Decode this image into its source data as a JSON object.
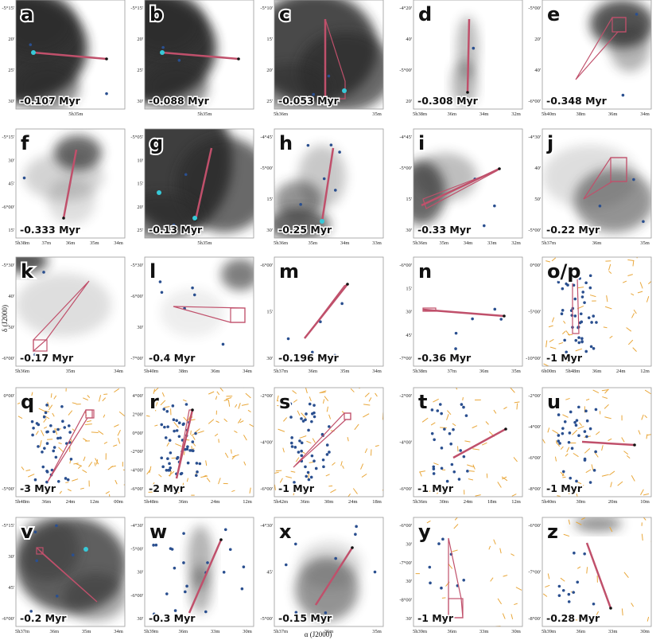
{
  "axes": {
    "x_label": "α (J2000)",
    "y_label": "δ (J2000)"
  },
  "colors": {
    "track": "#c0506b",
    "star": "#2a4f8f",
    "cyan": "#37c9d8",
    "vector": "#e9a73a",
    "cloud": "#2a2a2a"
  },
  "panels": [
    {
      "id": "a",
      "label": "a",
      "age": "-0.107 Myr",
      "yticks": [
        "-5°15'",
        "20'",
        "25'",
        "30'"
      ],
      "xticks": [
        "5h35m"
      ]
    },
    {
      "id": "b",
      "label": "b",
      "age": "-0.088 Myr",
      "yticks": [
        "-5°15'",
        "20'",
        "25'",
        "30'"
      ],
      "xticks": [
        "5h35m"
      ]
    },
    {
      "id": "c",
      "label": "c",
      "age": "-0.053 Myr",
      "yticks": [
        "-5°10'",
        "15'",
        "20'",
        "25'"
      ],
      "xticks": [
        "5h36m",
        "35m"
      ]
    },
    {
      "id": "d",
      "label": "d",
      "age": "-0.308 Myr",
      "yticks": [
        "-4°20'",
        "40'",
        "-5°00'",
        "20'"
      ],
      "xticks": [
        "5h38m",
        "36m",
        "34m",
        "32m"
      ]
    },
    {
      "id": "e",
      "label": "e",
      "age": "-0.348 Myr",
      "yticks": [
        "-5°00'",
        "20'",
        "40'",
        "-6°00'"
      ],
      "xticks": [
        "5h40m",
        "38m",
        "36m",
        "34m"
      ]
    },
    {
      "id": "f",
      "label": "f",
      "age": "-0.333 Myr",
      "yticks": [
        "-5°15'",
        "30'",
        "45'",
        "-6°00'",
        "15'"
      ],
      "xticks": [
        "5h38m",
        "37m",
        "36m",
        "35m",
        "34m"
      ]
    },
    {
      "id": "g",
      "label": "g",
      "age": "-0.13 Myr",
      "yticks": [
        "-5°05'",
        "10'",
        "15'",
        "20'",
        "25'"
      ],
      "xticks": [
        "5h35m"
      ]
    },
    {
      "id": "h",
      "label": "h",
      "age": "-0.25 Myr",
      "yticks": [
        "-4°45'",
        "-5°00'",
        "15'",
        "30'"
      ],
      "xticks": [
        "5h36m",
        "35m",
        "34m",
        "33m"
      ]
    },
    {
      "id": "i",
      "label": "i",
      "age": "-0.33 Myr",
      "yticks": [
        "-4°45'",
        "-5°00'",
        "15'",
        "30'"
      ],
      "xticks": [
        "5h36m",
        "35m",
        "34m",
        "33m",
        "32m"
      ]
    },
    {
      "id": "j",
      "label": "j",
      "age": "-0.22 Myr",
      "yticks": [
        "-4°30'",
        "40'",
        "50'",
        "-5°00'"
      ],
      "xticks": [
        "5h37m",
        "36m",
        "35m"
      ]
    },
    {
      "id": "k",
      "label": "k",
      "age": "-0.17 Myr",
      "yticks": [
        "-5°30'",
        "40'",
        "50'",
        "-6°00'"
      ],
      "xticks": [
        "5h36m",
        "35m",
        "34m"
      ]
    },
    {
      "id": "l",
      "label": "l",
      "age": "-0.4 Myr",
      "yticks": [
        "-5°30'",
        "-6°00'",
        "30'",
        "-7°00'"
      ],
      "xticks": [
        "5h40m",
        "38m",
        "36m",
        "34m"
      ]
    },
    {
      "id": "m",
      "label": "m",
      "age": "-0.196 Myr",
      "yticks": [
        "-6°00'",
        "15'",
        "30'"
      ],
      "xticks": [
        "5h37m",
        "36m",
        "35m",
        "34m"
      ]
    },
    {
      "id": "n",
      "label": "n",
      "age": "-0.36 Myr",
      "yticks": [
        "-6°00'",
        "15'",
        "30'",
        "45'",
        "-7°00'"
      ],
      "xticks": [
        "5h38m",
        "37m",
        "36m",
        "35m"
      ]
    },
    {
      "id": "op",
      "label": "o/p",
      "age": "-1 Myr",
      "yticks": [
        "0°00'",
        "-5°00'",
        "-10°00'"
      ],
      "xticks": [
        "6h00m",
        "5h48m",
        "36m",
        "24m",
        "12m"
      ]
    },
    {
      "id": "q",
      "label": "q",
      "age": "-3 Myr",
      "yticks": [
        "0°00'",
        "-5°00'"
      ],
      "xticks": [
        "5h48m",
        "36m",
        "24m",
        "12m",
        "00m"
      ]
    },
    {
      "id": "r",
      "label": "r",
      "age": "-2 Myr",
      "yticks": [
        "4°00'",
        "2°00'",
        "0°00'",
        "-2°00'",
        "-4°00'",
        "-6°00'"
      ],
      "xticks": [
        "5h48m",
        "36m",
        "24m",
        "12m"
      ]
    },
    {
      "id": "s",
      "label": "s",
      "age": "-1 Myr",
      "yticks": [
        "-2°00'",
        "-4°00'",
        "-6°00'"
      ],
      "xticks": [
        "5h42m",
        "36m",
        "30m",
        "24m",
        "18m"
      ]
    },
    {
      "id": "t",
      "label": "t",
      "age": "-1 Myr",
      "yticks": [
        "-2°00'",
        "-4°00'",
        "-6°00'"
      ],
      "xticks": [
        "5h36m",
        "30m",
        "24m",
        "18m",
        "12m"
      ]
    },
    {
      "id": "u",
      "label": "u",
      "age": "-1 Myr",
      "yticks": [
        "-2°00'",
        "-4°00'",
        "-6°00'",
        "-8°00'"
      ],
      "xticks": [
        "5h40m",
        "30m",
        "20m",
        "10m"
      ]
    },
    {
      "id": "v",
      "label": "v",
      "age": "-0.2 Myr",
      "yticks": [
        "-5°15'",
        "30'",
        "45'",
        "-6°00'"
      ],
      "xticks": [
        "5h37m",
        "36m",
        "35m",
        "34m"
      ]
    },
    {
      "id": "w",
      "label": "w",
      "age": "-0.3 Myr",
      "yticks": [
        "-4°30'",
        "-5°00'",
        "30'",
        "-6°00'",
        "30'"
      ],
      "xticks": [
        "5h39m",
        "36m",
        "33m",
        "30m"
      ]
    },
    {
      "id": "x",
      "label": "x",
      "age": "-0.15 Myr",
      "yticks": [
        "-4°30'",
        "45'",
        "-5°00'"
      ],
      "xticks": [
        "5h37m",
        "36m",
        "35m"
      ]
    },
    {
      "id": "y",
      "label": "y",
      "age": "-1 Myr",
      "yticks": [
        "-6°00'",
        "30'",
        "-7°00'",
        "30'",
        "-8°00'",
        "30'"
      ],
      "xticks": [
        "5h39m",
        "36m",
        "33m",
        "30m"
      ]
    },
    {
      "id": "z",
      "label": "z",
      "age": "-0.28 Myr",
      "yticks": [
        "-6°00'",
        "-7°00'",
        "-8°00'"
      ],
      "xticks": [
        "5h39m",
        "36m",
        "33m",
        "30m"
      ]
    }
  ]
}
